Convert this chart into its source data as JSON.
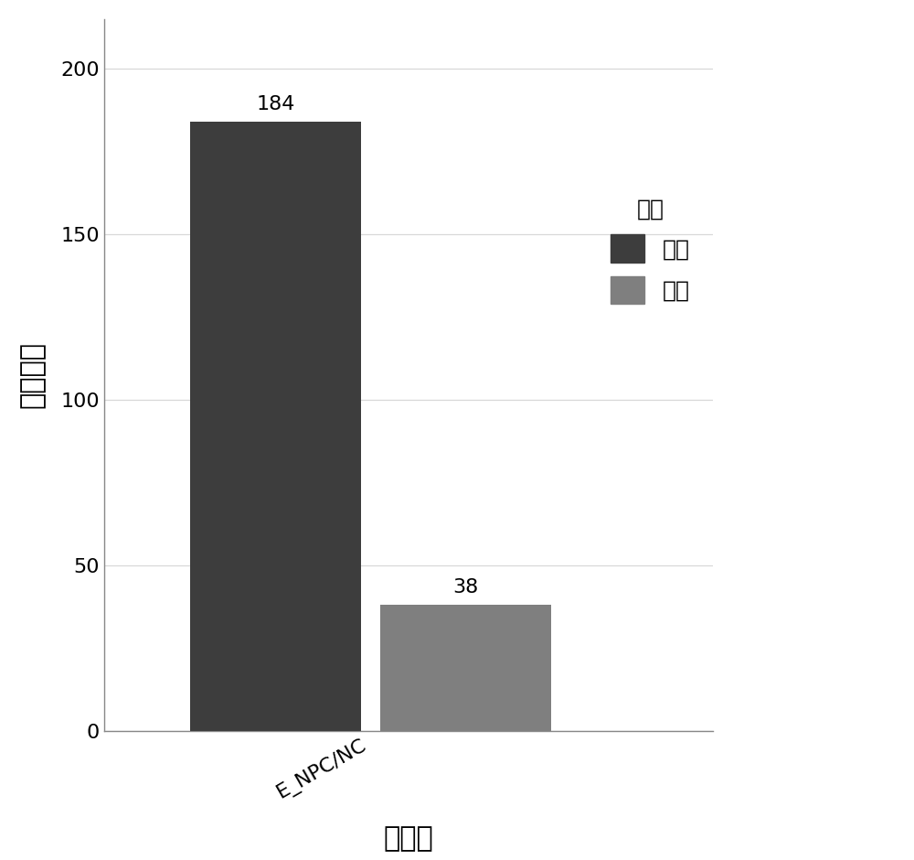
{
  "values": [
    184,
    38
  ],
  "colors": [
    "#3d3d3d",
    "#7f7f7f"
  ],
  "x_positions": [
    0.75,
    1.25
  ],
  "bar_width": 0.45,
  "xlabel": "对比组",
  "ylabel": "蛋白数量",
  "xtick_label": "E_NPC/NC",
  "xtick_pos": 1.0,
  "ylim": [
    0,
    215
  ],
  "yticks": [
    0,
    50,
    100,
    150,
    200
  ],
  "legend_title": "类型",
  "legend_labels": [
    "上调",
    "下调"
  ],
  "legend_colors": [
    "#3d3d3d",
    "#7f7f7f"
  ],
  "bar_label_fontsize": 16,
  "axis_label_fontsize": 22,
  "tick_fontsize": 16,
  "legend_fontsize": 18,
  "legend_title_fontsize": 18,
  "background_color": "#ffffff",
  "plot_bg_color": "#ffffff",
  "grid_color": "#d8d8d8",
  "spine_color": "#888888",
  "xlim": [
    0.3,
    1.9
  ]
}
